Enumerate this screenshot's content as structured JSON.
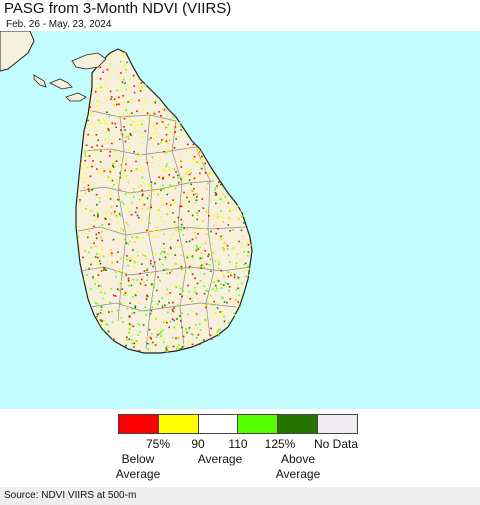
{
  "title": "PASG from 3-Month NDVI (VIIRS)",
  "subtitle": "Feb. 26 - May. 23, 2024",
  "colors": {
    "ocean": "#c2fcfc",
    "land_base": "#f6f0dc",
    "land_outline": "#222222",
    "district_lines": "#8a8a8a"
  },
  "legend": {
    "swatches": [
      {
        "name": "below-75",
        "color": "#ff0000"
      },
      {
        "name": "75-90",
        "color": "#ffff00"
      },
      {
        "name": "90-110",
        "color": "#ffffff"
      },
      {
        "name": "110-125",
        "color": "#55ff00"
      },
      {
        "name": "above-125",
        "color": "#267300"
      },
      {
        "name": "no-data",
        "color": "#efeaf0"
      }
    ],
    "ticks": [
      "75%",
      "90",
      "110",
      "125%",
      "No Data"
    ],
    "groups": [
      {
        "line1": "Below",
        "line2": "Average"
      },
      {
        "line1": "Average",
        "line2": ""
      },
      {
        "line1": "Above",
        "line2": "Average"
      }
    ]
  },
  "source": "Source: NDVI VIIRS at 500-m"
}
